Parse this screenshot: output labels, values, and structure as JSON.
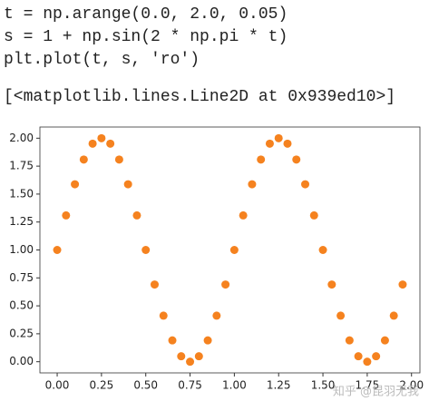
{
  "cell": {
    "code": [
      "t = np.arange(0.0, 2.0, 0.05)",
      "s = 1 + np.sin(2 * np.pi * t)",
      "plt.plot(t, s, 'ro')"
    ],
    "output": "[<matplotlib.lines.Line2D at 0x939ed10>]"
  },
  "chart_data": {
    "type": "scatter",
    "color": "#f5821f",
    "annotation": "知乎 @昆羽无我",
    "x": [
      0,
      0.05,
      0.1,
      0.15,
      0.2,
      0.25,
      0.3,
      0.35,
      0.4,
      0.45,
      0.5,
      0.55,
      0.6,
      0.65,
      0.7,
      0.75,
      0.8,
      0.85,
      0.9,
      0.95,
      1,
      1.05,
      1.1,
      1.15,
      1.2,
      1.25,
      1.3,
      1.35,
      1.4,
      1.45,
      1.5,
      1.55,
      1.6,
      1.65,
      1.7,
      1.75,
      1.8,
      1.85,
      1.9,
      1.95
    ],
    "values": [
      1,
      1.309,
      1.588,
      1.809,
      1.951,
      2,
      1.951,
      1.809,
      1.588,
      1.309,
      1,
      0.691,
      0.412,
      0.191,
      0.049,
      0,
      0.049,
      0.191,
      0.412,
      0.691,
      1,
      1.309,
      1.588,
      1.809,
      1.951,
      2,
      1.951,
      1.809,
      1.588,
      1.309,
      1,
      0.691,
      0.412,
      0.191,
      0.049,
      0,
      0.049,
      0.191,
      0.412,
      0.691
    ],
    "xlim": [
      -0.0975,
      2.0475
    ],
    "ylim": [
      -0.1,
      2.1
    ],
    "xticks": [
      {
        "value": 0,
        "label": "0.00"
      },
      {
        "value": 0.25,
        "label": "0.25"
      },
      {
        "value": 0.5,
        "label": "0.50"
      },
      {
        "value": 0.75,
        "label": "0.75"
      },
      {
        "value": 1,
        "label": "1.00"
      },
      {
        "value": 1.25,
        "label": "1.25"
      },
      {
        "value": 1.5,
        "label": "1.50"
      },
      {
        "value": 1.75,
        "label": "1.75"
      },
      {
        "value": 2,
        "label": "2.00"
      }
    ],
    "yticks": [
      {
        "value": 0,
        "label": "0.00"
      },
      {
        "value": 0.25,
        "label": "0.25"
      },
      {
        "value": 0.5,
        "label": "0.50"
      },
      {
        "value": 0.75,
        "label": "0.75"
      },
      {
        "value": 1,
        "label": "1.00"
      },
      {
        "value": 1.25,
        "label": "1.25"
      },
      {
        "value": 1.5,
        "label": "1.50"
      },
      {
        "value": 1.75,
        "label": "1.75"
      },
      {
        "value": 2,
        "label": "2.00"
      }
    ]
  }
}
